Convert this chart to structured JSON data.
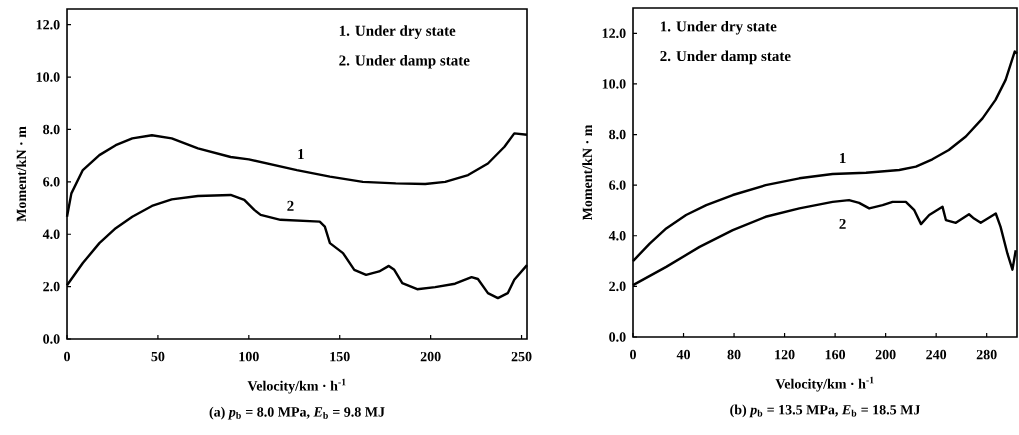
{
  "chart_data": [
    {
      "type": "line",
      "title": "(a) *p*$_{b}$ = 8.0 MPa, *E*$_{b}$ = 9.8 MJ",
      "xlabel": "Velocity/km · h$^{-1}$",
      "ylabel": "Moment/kN · m",
      "annotations": [
        "1. Under dry state",
        "2. Under damp state"
      ],
      "xlim": [
        0,
        253
      ],
      "ylim": [
        0,
        12.6
      ],
      "xticks": [
        0,
        50,
        100,
        150,
        200,
        250
      ],
      "yticks": [
        {
          "value": 0,
          "label": "0.0"
        },
        {
          "value": 2,
          "label": "2.0"
        },
        {
          "value": 4,
          "label": "4.0"
        },
        {
          "value": 6,
          "label": "6.0"
        },
        {
          "value": 8,
          "label": "8.0"
        },
        {
          "value": 10,
          "label": "10.0"
        },
        {
          "value": 12,
          "label": "12.0"
        }
      ],
      "grid": false,
      "legend": false,
      "marker": "none",
      "line_style": "solid",
      "series": [
        {
          "name": "1",
          "color": "#000000",
          "x": [
            0,
            2.4,
            8.7,
            17.8,
            26.8,
            35.9,
            46.7,
            57.6,
            72,
            90,
            100,
            126.4,
            144.6,
            162.7,
            180.8,
            197,
            208,
            220.6,
            231.5,
            240.6,
            246,
            253
          ],
          "values": [
            4.67,
            5.56,
            6.45,
            7.02,
            7.4,
            7.66,
            7.78,
            7.66,
            7.28,
            6.95,
            6.86,
            6.45,
            6.2,
            6.0,
            5.94,
            5.92,
            6.0,
            6.26,
            6.7,
            7.34,
            7.85,
            7.8
          ]
        },
        {
          "name": "2",
          "color": "#000000",
          "x": [
            0,
            8.7,
            17.8,
            26.8,
            35.9,
            46.7,
            57.6,
            72,
            90,
            97.5,
            103,
            106.5,
            117.4,
            139,
            141.8,
            144.6,
            151.8,
            158,
            164.5,
            171.7,
            177,
            180,
            184.4,
            192.6,
            202.5,
            213.4,
            222.5,
            226,
            231.5,
            237,
            242.4,
            246,
            253
          ],
          "values": [
            2.05,
            2.9,
            3.66,
            4.23,
            4.67,
            5.08,
            5.33,
            5.46,
            5.5,
            5.31,
            4.93,
            4.74,
            4.55,
            4.48,
            4.29,
            3.66,
            3.28,
            2.64,
            2.45,
            2.58,
            2.79,
            2.64,
            2.13,
            1.9,
            1.98,
            2.11,
            2.36,
            2.29,
            1.75,
            1.56,
            1.75,
            2.26,
            2.82
          ]
        }
      ]
    },
    {
      "type": "line",
      "title": "(b) *p*$_{b}$ = 13.5 MPa, *E*$_{b}$ = 18.5 MJ",
      "xlabel": "Velocity/km · h$^{-1}$",
      "ylabel": "Moment/kN · m",
      "annotations": [
        "1. Under dry state",
        "2. Under damp state"
      ],
      "xlim": [
        0,
        304
      ],
      "ylim": [
        0,
        13.0
      ],
      "xticks": [
        0,
        40,
        80,
        120,
        160,
        200,
        240,
        280
      ],
      "yticks": [
        {
          "value": 0,
          "label": "0.0"
        },
        {
          "value": 2,
          "label": "2.0"
        },
        {
          "value": 4,
          "label": "4.0"
        },
        {
          "value": 6,
          "label": "6.0"
        },
        {
          "value": 8,
          "label": "8.0"
        },
        {
          "value": 10,
          "label": "10.0"
        },
        {
          "value": 12,
          "label": "12.0"
        }
      ],
      "grid": false,
      "legend": false,
      "marker": "none",
      "line_style": "solid",
      "series": [
        {
          "name": "1",
          "color": "#000000",
          "x": [
            0,
            13.2,
            26.3,
            42,
            58,
            79,
            105,
            131.7,
            158,
            184.5,
            210.8,
            224,
            237,
            250,
            263.5,
            276.7,
            287,
            295,
            300.4,
            302.2,
            304
          ],
          "values": [
            3.0,
            3.69,
            4.29,
            4.82,
            5.21,
            5.61,
            6.0,
            6.27,
            6.44,
            6.49,
            6.6,
            6.73,
            7.02,
            7.39,
            7.92,
            8.64,
            9.37,
            10.16,
            11.0,
            11.28,
            11.2
          ]
        },
        {
          "name": "2",
          "color": "#000000",
          "x": [
            0,
            26.3,
            52.7,
            79,
            105,
            131.7,
            158,
            171,
            179,
            187,
            197.6,
            205.5,
            216,
            222.7,
            228,
            234.5,
            245,
            247.7,
            255.6,
            266,
            270,
            275.3,
            287.2,
            291,
            296.4,
            300.4,
            303
          ],
          "values": [
            2.05,
            2.77,
            3.56,
            4.22,
            4.75,
            5.08,
            5.34,
            5.41,
            5.3,
            5.08,
            5.21,
            5.34,
            5.34,
            5.01,
            4.46,
            4.82,
            5.15,
            4.62,
            4.51,
            4.85,
            4.68,
            4.51,
            4.88,
            4.35,
            3.3,
            2.66,
            3.43
          ]
        }
      ]
    }
  ]
}
